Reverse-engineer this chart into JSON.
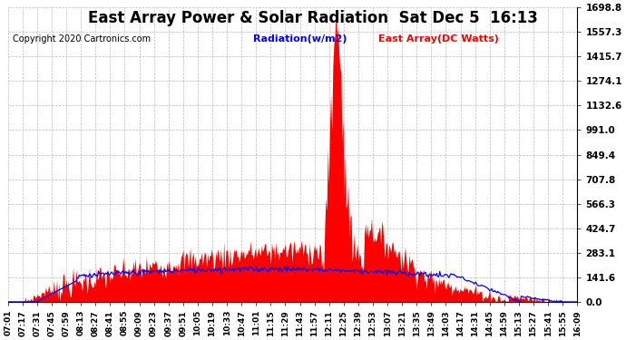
{
  "title": "East Array Power & Solar Radiation  Sat Dec 5  16:13",
  "copyright": "Copyright 2020 Cartronics.com",
  "legend_radiation": "Radiation(w/m2)",
  "legend_east_array": "East Array(DC Watts)",
  "legend_radiation_color": "blue",
  "legend_east_array_color": "red",
  "y_max": 1698.8,
  "y_min": 0.0,
  "y_ticks": [
    0.0,
    141.6,
    283.1,
    424.7,
    566.3,
    707.8,
    849.4,
    991.0,
    1132.6,
    1274.1,
    1415.7,
    1557.3,
    1698.8
  ],
  "background_color": "#ffffff",
  "plot_bg_color": "#ffffff",
  "grid_color": "#bbbbbb",
  "fill_color": "red",
  "line_color": "blue",
  "title_fontsize": 12,
  "copyright_fontsize": 7,
  "x_label_fontsize": 6.5,
  "y_label_fontsize": 7.5,
  "x_tick_labels": [
    "07:01",
    "07:17",
    "07:31",
    "07:45",
    "07:59",
    "08:13",
    "08:27",
    "08:41",
    "08:55",
    "09:09",
    "09:23",
    "09:37",
    "09:51",
    "10:05",
    "10:19",
    "10:33",
    "10:47",
    "11:01",
    "11:15",
    "11:29",
    "11:43",
    "11:57",
    "12:11",
    "12:25",
    "12:39",
    "12:53",
    "13:07",
    "13:21",
    "13:35",
    "13:49",
    "14:03",
    "14:17",
    "14:31",
    "14:45",
    "14:59",
    "15:13",
    "15:27",
    "15:41",
    "15:55",
    "16:09"
  ],
  "num_points": 560
}
